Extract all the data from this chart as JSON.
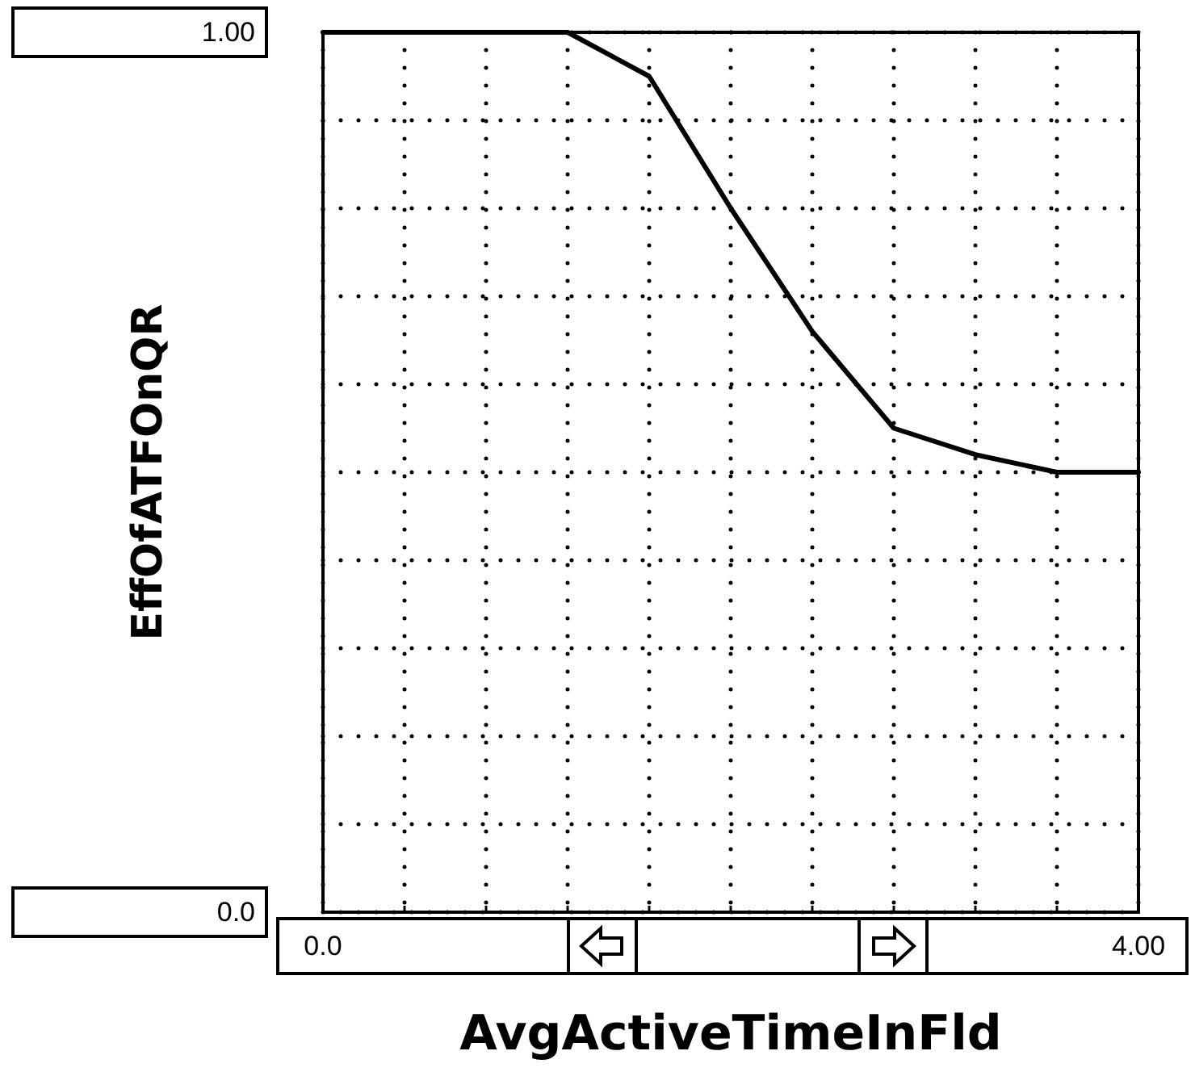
{
  "chart_data": {
    "type": "line",
    "xlabel": "AvgActiveTimeInFld",
    "ylabel": "EffOfATFOnQR",
    "x": [
      0,
      0.4,
      0.8,
      1.2,
      1.6,
      2.0,
      2.4,
      2.8,
      3.2,
      3.6,
      4.0
    ],
    "series": [
      {
        "color": "#000000",
        "values": [
          1,
          1,
          1,
          1,
          0.95,
          0.8,
          0.66,
          0.55,
          0.52,
          0.5,
          0.5
        ]
      }
    ],
    "xlim": [
      0,
      4
    ],
    "ylim": [
      0,
      1
    ],
    "xticks": [
      {
        "value": 0,
        "label": "0.0"
      },
      {
        "value": 0.4,
        "label": null
      },
      {
        "value": 0.8,
        "label": null
      },
      {
        "value": 1.2,
        "label": null
      },
      {
        "value": 1.6,
        "label": null
      },
      {
        "value": 2.0,
        "label": null
      },
      {
        "value": 2.4,
        "label": null
      },
      {
        "value": 2.8,
        "label": null
      },
      {
        "value": 3.2,
        "label": null
      },
      {
        "value": 3.6,
        "label": null
      },
      {
        "value": 4,
        "label": "4.00"
      }
    ],
    "yticks": [
      {
        "value": 0,
        "label": "0.0"
      },
      {
        "value": 0.1,
        "label": null
      },
      {
        "value": 0.2,
        "label": null
      },
      {
        "value": 0.3,
        "label": null
      },
      {
        "value": 0.4,
        "label": null
      },
      {
        "value": 0.5,
        "label": null
      },
      {
        "value": 0.6,
        "label": null
      },
      {
        "value": 0.7,
        "label": null
      },
      {
        "value": 0.8,
        "label": null
      },
      {
        "value": 0.9,
        "label": null
      },
      {
        "value": 1,
        "label": "1.00"
      }
    ],
    "grid": true,
    "marker": "none",
    "line_style": "solid"
  }
}
